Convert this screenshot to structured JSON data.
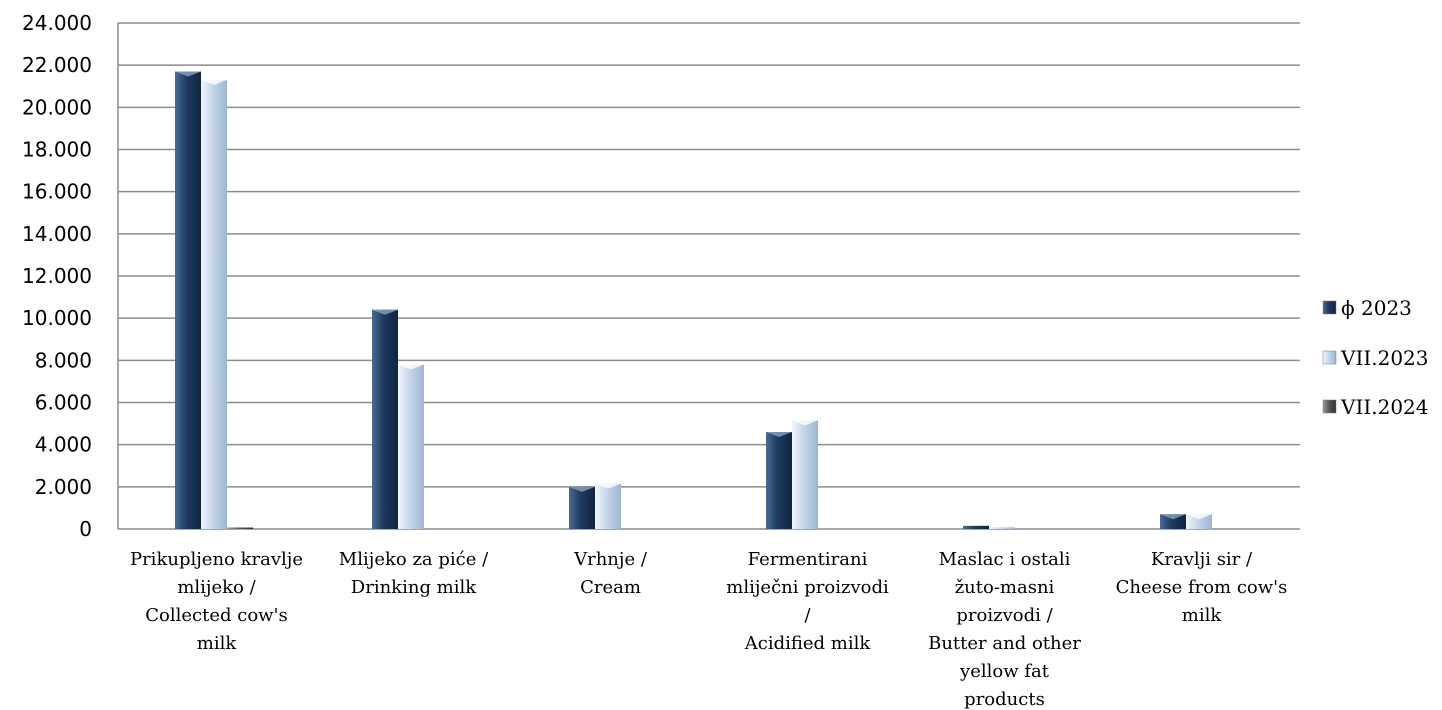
{
  "chart_data": {
    "type": "bar",
    "categories": [
      [
        "Prikupljeno kravlje",
        "mlijeko /",
        "Collected cow's",
        "milk"
      ],
      [
        "Mlijeko za piće /",
        "Drinking milk"
      ],
      [
        "Vrhnje /",
        "Cream"
      ],
      [
        "Fermentirani",
        "mliječni proizvodi",
        "/",
        "Acidified milk"
      ],
      [
        "Maslac i ostali",
        "žuto-masni",
        "proizvodi /",
        "Butter and other",
        "yellow fat",
        "products"
      ],
      [
        "Kravlji sir /",
        "Cheese from cow's",
        "milk"
      ]
    ],
    "series": [
      {
        "name": "ϕ 2023",
        "color": "#1f3a60",
        "values": [
          21700,
          10400,
          2000,
          4600,
          150,
          700
        ]
      },
      {
        "name": "VII.2023",
        "color": "#c6d6ea",
        "values": [
          21300,
          7800,
          2150,
          5150,
          80,
          700
        ]
      },
      {
        "name": "VII.2024",
        "color": "#5a5a5a",
        "values": [
          60,
          0,
          0,
          0,
          0,
          0
        ]
      }
    ],
    "ylim": [
      0,
      24000
    ],
    "yticks": [
      "0",
      "2.000",
      "4.000",
      "6.000",
      "8.000",
      "10.000",
      "12.000",
      "14.000",
      "16.000",
      "18.000",
      "20.000",
      "22.000",
      "24.000"
    ],
    "ytick_values": [
      0,
      2000,
      4000,
      6000,
      8000,
      10000,
      12000,
      14000,
      16000,
      18000,
      20000,
      22000,
      24000
    ],
    "grid": true,
    "legend_position": "right",
    "title": "",
    "xlabel": "",
    "ylabel": ""
  }
}
